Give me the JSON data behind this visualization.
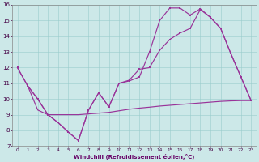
{
  "xlabel": "Windchill (Refroidissement éolien,°C)",
  "bg_color": "#cce8e8",
  "line_color": "#993399",
  "xlim_min": -0.5,
  "xlim_max": 23.5,
  "ylim_min": 7,
  "ylim_max": 16,
  "xticks": [
    0,
    1,
    2,
    3,
    4,
    5,
    6,
    7,
    8,
    9,
    10,
    11,
    12,
    13,
    14,
    15,
    16,
    17,
    18,
    19,
    20,
    21,
    22,
    23
  ],
  "yticks": [
    7,
    8,
    9,
    10,
    11,
    12,
    13,
    14,
    15,
    16
  ],
  "s1_x": [
    0,
    1,
    2,
    3,
    4,
    5,
    6,
    7,
    8,
    9,
    10,
    11,
    12,
    13,
    14,
    15,
    16,
    17,
    18,
    19,
    20,
    21,
    22,
    23
  ],
  "s1_y": [
    12.0,
    10.85,
    10.0,
    9.0,
    8.5,
    7.9,
    7.35,
    9.3,
    10.4,
    9.5,
    11.0,
    11.15,
    11.4,
    13.0,
    15.0,
    15.8,
    15.8,
    15.35,
    15.75,
    15.2,
    14.5,
    12.9,
    11.4,
    9.9
  ],
  "s2_x": [
    0,
    1,
    2,
    3,
    4,
    5,
    6,
    7,
    8,
    9,
    10,
    11,
    12,
    13,
    14,
    15,
    16,
    17,
    18,
    19,
    20,
    21,
    22,
    23
  ],
  "s2_y": [
    12.0,
    10.85,
    10.0,
    9.0,
    8.5,
    7.9,
    7.35,
    9.3,
    10.4,
    9.5,
    11.0,
    11.2,
    11.9,
    12.0,
    13.1,
    13.8,
    14.2,
    14.5,
    15.7,
    15.2,
    14.5,
    12.9,
    11.4,
    9.9
  ],
  "s3_x": [
    1,
    2,
    3,
    4,
    5,
    6,
    7,
    8,
    9,
    10,
    11,
    12,
    13,
    14,
    15,
    16,
    17,
    18,
    19,
    20,
    21,
    22,
    23
  ],
  "s3_y": [
    10.85,
    9.3,
    9.0,
    9.0,
    9.0,
    9.0,
    9.05,
    9.1,
    9.15,
    9.25,
    9.35,
    9.42,
    9.48,
    9.55,
    9.6,
    9.65,
    9.7,
    9.75,
    9.8,
    9.85,
    9.88,
    9.9,
    9.9
  ]
}
